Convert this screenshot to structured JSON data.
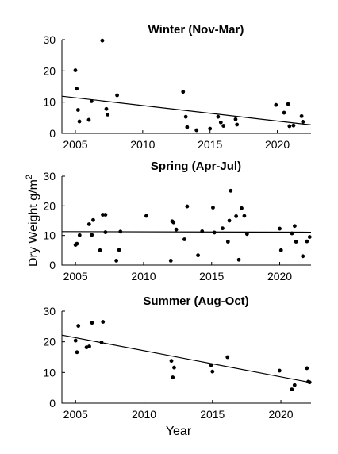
{
  "figure": {
    "ylabel": "Dry Weight g/m",
    "ylabel_superscript": "2",
    "xlabel": "Year"
  },
  "chart_data": [
    {
      "type": "scatter",
      "title": "Winter (Nov-Mar)",
      "xlim": [
        2004,
        2022.5
      ],
      "ylim": [
        0,
        30
      ],
      "xticks": [
        2005,
        2010,
        2015,
        2020
      ],
      "yticks": [
        0,
        10,
        20,
        30
      ],
      "grid": false,
      "points": [
        [
          2005.0,
          20.2
        ],
        [
          2005.1,
          14.3
        ],
        [
          2005.2,
          7.5
        ],
        [
          2005.3,
          3.8
        ],
        [
          2006.0,
          4.3
        ],
        [
          2006.2,
          10.3
        ],
        [
          2007.0,
          29.7
        ],
        [
          2007.3,
          7.8
        ],
        [
          2007.4,
          6.0
        ],
        [
          2008.1,
          12.2
        ],
        [
          2013.0,
          13.3
        ],
        [
          2013.2,
          5.3
        ],
        [
          2013.3,
          2.0
        ],
        [
          2014.0,
          1.0
        ],
        [
          2015.0,
          1.5
        ],
        [
          2015.6,
          5.3
        ],
        [
          2015.8,
          3.5
        ],
        [
          2016.0,
          2.4
        ],
        [
          2016.9,
          4.5
        ],
        [
          2017.0,
          2.8
        ],
        [
          2019.9,
          9.1
        ],
        [
          2020.5,
          6.6
        ],
        [
          2020.8,
          9.4
        ],
        [
          2020.9,
          2.3
        ],
        [
          2021.2,
          2.5
        ],
        [
          2021.8,
          5.5
        ],
        [
          2021.9,
          3.7
        ]
      ],
      "trend": {
        "x": [
          2004,
          2022.5
        ],
        "y": [
          11.9,
          2.7
        ]
      }
    },
    {
      "type": "scatter",
      "title": "Spring (Apr-Jul)",
      "xlim": [
        2004,
        2022.3
      ],
      "ylim": [
        0,
        30
      ],
      "xticks": [
        2005,
        2010,
        2015,
        2020
      ],
      "yticks": [
        0,
        10,
        20,
        30
      ],
      "grid": false,
      "points": [
        [
          2005.0,
          6.8
        ],
        [
          2005.1,
          7.2
        ],
        [
          2005.3,
          10.1
        ],
        [
          2006.0,
          13.8
        ],
        [
          2006.2,
          10.2
        ],
        [
          2006.3,
          15.2
        ],
        [
          2006.8,
          5.0
        ],
        [
          2007.0,
          17.0
        ],
        [
          2007.2,
          17.0
        ],
        [
          2007.2,
          11.1
        ],
        [
          2008.0,
          1.5
        ],
        [
          2008.2,
          5.1
        ],
        [
          2008.3,
          11.3
        ],
        [
          2010.2,
          16.6
        ],
        [
          2012.0,
          1.5
        ],
        [
          2012.1,
          14.8
        ],
        [
          2012.2,
          14.4
        ],
        [
          2012.4,
          12.0
        ],
        [
          2013.0,
          8.7
        ],
        [
          2013.2,
          19.8
        ],
        [
          2014.0,
          3.3
        ],
        [
          2014.3,
          11.4
        ],
        [
          2015.1,
          19.4
        ],
        [
          2015.2,
          11.0
        ],
        [
          2015.8,
          12.4
        ],
        [
          2016.2,
          7.9
        ],
        [
          2016.3,
          15.0
        ],
        [
          2016.4,
          25.1
        ],
        [
          2016.8,
          16.5
        ],
        [
          2017.0,
          1.8
        ],
        [
          2017.2,
          19.2
        ],
        [
          2017.4,
          16.6
        ],
        [
          2017.6,
          10.5
        ],
        [
          2020.0,
          12.3
        ],
        [
          2020.1,
          5.0
        ],
        [
          2020.9,
          10.7
        ],
        [
          2021.1,
          13.2
        ],
        [
          2021.2,
          7.9
        ],
        [
          2021.7,
          3.0
        ],
        [
          2022.0,
          8.0
        ],
        [
          2022.2,
          9.5
        ]
      ],
      "trend": {
        "x": [
          2004,
          2022.3
        ],
        "y": [
          11.3,
          11.1
        ]
      }
    },
    {
      "type": "scatter",
      "title": "Summer (Aug-Oct)",
      "xlim": [
        2004,
        2022.2
      ],
      "ylim": [
        0,
        30
      ],
      "xticks": [
        2005,
        2010,
        2015,
        2020
      ],
      "yticks": [
        0,
        10,
        20,
        30
      ],
      "grid": false,
      "points": [
        [
          2005.0,
          20.4
        ],
        [
          2005.1,
          16.6
        ],
        [
          2005.2,
          25.2
        ],
        [
          2005.8,
          18.2
        ],
        [
          2006.0,
          18.5
        ],
        [
          2006.2,
          26.2
        ],
        [
          2006.9,
          19.8
        ],
        [
          2007.0,
          26.5
        ],
        [
          2012.0,
          13.8
        ],
        [
          2012.1,
          8.4
        ],
        [
          2012.2,
          11.6
        ],
        [
          2014.9,
          12.4
        ],
        [
          2015.0,
          10.3
        ],
        [
          2016.1,
          15.0
        ],
        [
          2019.9,
          10.6
        ],
        [
          2020.8,
          4.5
        ],
        [
          2021.0,
          5.9
        ],
        [
          2021.9,
          11.4
        ],
        [
          2022.0,
          7.0
        ],
        [
          2022.1,
          6.8
        ]
      ],
      "trend": {
        "x": [
          2004,
          2022.2
        ],
        "y": [
          22.2,
          6.7
        ]
      }
    }
  ]
}
